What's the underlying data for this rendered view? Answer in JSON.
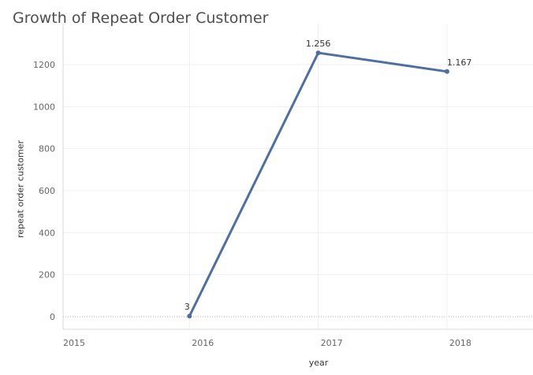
{
  "chart_data": {
    "type": "line",
    "title": "Growth of Repeat Order Customer",
    "xlabel": "year",
    "ylabel": "repeat order customer",
    "categories": [
      "2015",
      "2016",
      "2017",
      "2018"
    ],
    "yticks": [
      0,
      200,
      400,
      600,
      800,
      1000,
      1200
    ],
    "series": [
      {
        "points": [
          {
            "x": "2016",
            "y": 3,
            "label": "3"
          },
          {
            "x": "2017",
            "y": 1256,
            "label": "1.256"
          },
          {
            "x": "2018",
            "y": 1167,
            "label": "1.167"
          }
        ]
      }
    ],
    "grid": true,
    "line_color": "#4e6f9f"
  }
}
